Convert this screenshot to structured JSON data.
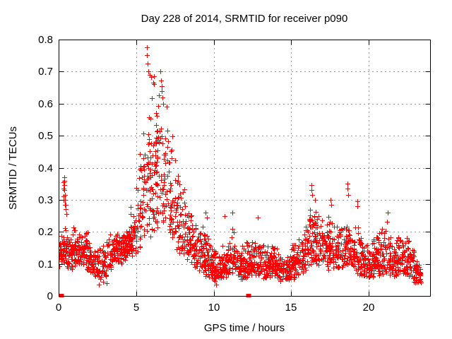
{
  "chart_data": {
    "type": "scatter",
    "title": "Day 228 of 2014, SRMTID for receiver p090",
    "xlabel": "GPS time / hours",
    "ylabel": "SRMTID / TECUs",
    "xlim": [
      0,
      24
    ],
    "ylim": [
      0,
      0.8
    ],
    "xticks": [
      0,
      5,
      10,
      15,
      20
    ],
    "yticks": [
      0,
      0.1,
      0.2,
      0.3,
      0.4,
      0.5,
      0.6,
      0.7,
      0.8
    ],
    "grid": true,
    "legend": "none",
    "marker": "plus",
    "colors": {
      "marker": "#ff0000",
      "grid": "#999999",
      "frame": "#000000",
      "text": "#000000",
      "background": "#ffffff"
    },
    "series_name": "SRMTID",
    "x_start": 0.02,
    "x_end": 23.38,
    "n_points": 2250,
    "seed": 228,
    "envelope_note": "piecewise-linear [hour, min, max] envelope of the dense scatter band read off the plot",
    "envelope": [
      [
        0.0,
        0.09,
        0.19
      ],
      [
        0.5,
        0.09,
        0.23
      ],
      [
        1.0,
        0.08,
        0.22
      ],
      [
        1.5,
        0.1,
        0.23
      ],
      [
        2.0,
        0.07,
        0.2
      ],
      [
        2.5,
        0.05,
        0.18
      ],
      [
        3.0,
        0.05,
        0.2
      ],
      [
        3.5,
        0.09,
        0.21
      ],
      [
        4.0,
        0.1,
        0.22
      ],
      [
        4.5,
        0.11,
        0.27
      ],
      [
        5.0,
        0.12,
        0.38
      ],
      [
        5.5,
        0.15,
        0.58
      ],
      [
        5.9,
        0.18,
        0.71
      ],
      [
        6.3,
        0.21,
        0.66
      ],
      [
        6.7,
        0.22,
        0.69
      ],
      [
        7.0,
        0.2,
        0.61
      ],
      [
        7.4,
        0.16,
        0.5
      ],
      [
        7.8,
        0.13,
        0.42
      ],
      [
        8.2,
        0.11,
        0.33
      ],
      [
        8.7,
        0.09,
        0.26
      ],
      [
        9.3,
        0.07,
        0.24
      ],
      [
        9.7,
        0.05,
        0.21
      ],
      [
        10.1,
        0.04,
        0.15
      ],
      [
        10.6,
        0.05,
        0.17
      ],
      [
        11.0,
        0.06,
        0.19
      ],
      [
        11.3,
        0.07,
        0.23
      ],
      [
        11.7,
        0.05,
        0.17
      ],
      [
        12.2,
        0.05,
        0.18
      ],
      [
        12.8,
        0.06,
        0.21
      ],
      [
        13.3,
        0.05,
        0.18
      ],
      [
        13.8,
        0.06,
        0.19
      ],
      [
        14.3,
        0.04,
        0.15
      ],
      [
        14.8,
        0.05,
        0.16
      ],
      [
        15.3,
        0.05,
        0.18
      ],
      [
        15.8,
        0.07,
        0.22
      ],
      [
        16.2,
        0.09,
        0.29
      ],
      [
        16.6,
        0.1,
        0.3
      ],
      [
        17.0,
        0.08,
        0.26
      ],
      [
        17.6,
        0.08,
        0.27
      ],
      [
        18.0,
        0.08,
        0.24
      ],
      [
        18.6,
        0.09,
        0.28
      ],
      [
        19.0,
        0.08,
        0.26
      ],
      [
        19.5,
        0.06,
        0.2
      ],
      [
        20.0,
        0.05,
        0.17
      ],
      [
        20.6,
        0.06,
        0.22
      ],
      [
        21.1,
        0.07,
        0.24
      ],
      [
        21.6,
        0.06,
        0.2
      ],
      [
        22.1,
        0.07,
        0.21
      ],
      [
        22.6,
        0.05,
        0.18
      ],
      [
        23.0,
        0.04,
        0.16
      ],
      [
        23.4,
        0.04,
        0.13
      ]
    ],
    "notable_points": [
      [
        0.3,
        0.31
      ],
      [
        0.32,
        0.335
      ],
      [
        0.33,
        0.355
      ],
      [
        0.34,
        0.3
      ],
      [
        0.35,
        0.37
      ],
      [
        0.36,
        0.345
      ],
      [
        0.37,
        0.36
      ],
      [
        0.38,
        0.33
      ],
      [
        0.4,
        0.3
      ],
      [
        0.41,
        0.285
      ],
      [
        0.42,
        0.315
      ],
      [
        0.45,
        0.285
      ],
      [
        0.47,
        0.27
      ],
      [
        0.5,
        0.255
      ],
      [
        5.7,
        0.775
      ],
      [
        5.71,
        0.752
      ],
      [
        5.76,
        0.725
      ],
      [
        5.79,
        0.7
      ],
      [
        6.1,
        0.665
      ],
      [
        6.15,
        0.685
      ],
      [
        6.45,
        0.625
      ],
      [
        6.55,
        0.7
      ],
      [
        6.6,
        0.672
      ],
      [
        6.63,
        0.655
      ],
      [
        6.67,
        0.64
      ],
      [
        6.7,
        0.62
      ],
      [
        6.73,
        0.6
      ],
      [
        9.45,
        0.26
      ],
      [
        9.55,
        0.245
      ],
      [
        10.7,
        0.25
      ],
      [
        11.2,
        0.26
      ],
      [
        12.85,
        0.245
      ],
      [
        16.3,
        0.345
      ],
      [
        16.32,
        0.33
      ],
      [
        16.35,
        0.315
      ],
      [
        16.55,
        0.3
      ],
      [
        17.55,
        0.3
      ],
      [
        17.58,
        0.285
      ],
      [
        18.62,
        0.35
      ],
      [
        18.64,
        0.335
      ],
      [
        18.66,
        0.315
      ],
      [
        19.25,
        0.295
      ],
      [
        19.28,
        0.28
      ],
      [
        21.2,
        0.26
      ],
      [
        2.6,
        0.035
      ],
      [
        2.85,
        0.045
      ],
      [
        3.1,
        0.04
      ],
      [
        10.15,
        0.035
      ],
      [
        22.9,
        0.045
      ]
    ],
    "zero_square_markers": [
      [
        0.18,
        0
      ],
      [
        12.27,
        0
      ]
    ]
  }
}
